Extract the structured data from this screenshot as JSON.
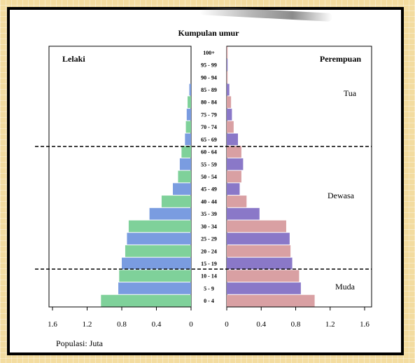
{
  "chart_data": {
    "type": "bar",
    "title": "Kumpulan umur",
    "left_label": "Lelaki",
    "right_label": "Perempuan",
    "xlabel": "Populasi: Juta",
    "age_groups": [
      "100+",
      "95 - 99",
      "90 - 94",
      "85 - 89",
      "80 - 84",
      "75 - 79",
      "70 - 74",
      "65 - 69",
      "60 - 64",
      "55 - 59",
      "50 - 54",
      "45 - 49",
      "40 - 44",
      "35 - 39",
      "30 - 34",
      "25 - 29",
      "20 - 24",
      "15 - 19",
      "10 - 14",
      "5 - 9",
      "0 - 4"
    ],
    "series": [
      {
        "name": "Lelaki",
        "values": [
          0.0,
          0.0,
          0.0,
          0.02,
          0.04,
          0.05,
          0.06,
          0.07,
          0.11,
          0.13,
          0.15,
          0.21,
          0.34,
          0.48,
          0.72,
          0.74,
          0.76,
          0.8,
          0.83,
          0.84,
          1.04
        ]
      },
      {
        "name": "Perempuan",
        "values": [
          0.01,
          0.01,
          0.01,
          0.03,
          0.05,
          0.06,
          0.08,
          0.13,
          0.17,
          0.19,
          0.17,
          0.15,
          0.23,
          0.38,
          0.69,
          0.73,
          0.74,
          0.76,
          0.84,
          0.86,
          1.02
        ]
      }
    ],
    "xlim": [
      0,
      1.6
    ],
    "ticks": [
      "1.6",
      "1.2",
      "0.8",
      "0.4",
      "0"
    ],
    "ticks_right": [
      "0",
      "0.4",
      "0.8",
      "1.2",
      "1.6"
    ],
    "groups": [
      {
        "name": "Tua"
      },
      {
        "name": "Dewasa"
      },
      {
        "name": "Muda"
      }
    ],
    "colors": {
      "male_a": "#7fd19a",
      "male_b": "#7a9ce0",
      "female_a": "#d9a0a3",
      "female_b": "#8a78c8"
    },
    "grid": false,
    "legend": "none"
  }
}
